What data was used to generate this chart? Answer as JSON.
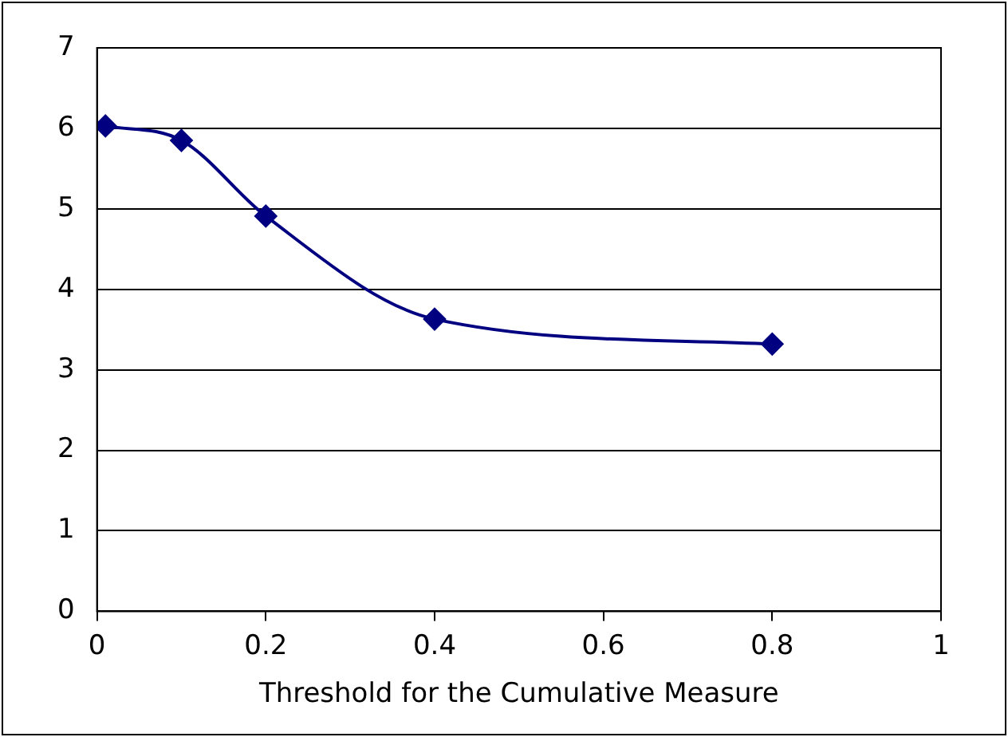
{
  "chart_data": {
    "type": "line",
    "xlabel": "Threshold for the Cumulative Measure",
    "x": [
      0.01,
      0.1,
      0.2,
      0.4,
      0.8
    ],
    "series": [
      {
        "color": "#000080",
        "values": [
          6.03,
          5.85,
          4.91,
          3.63,
          3.32
        ]
      }
    ],
    "xlim": [
      0,
      1
    ],
    "xticks": [
      0,
      0.2,
      0.4,
      0.6,
      0.8,
      1
    ],
    "ylim": [
      0,
      7
    ],
    "yticks": [
      0,
      1,
      2,
      3,
      4,
      5,
      6,
      7
    ],
    "grid": "y",
    "legend": false,
    "marker": "diamond",
    "line_style": "solid"
  }
}
